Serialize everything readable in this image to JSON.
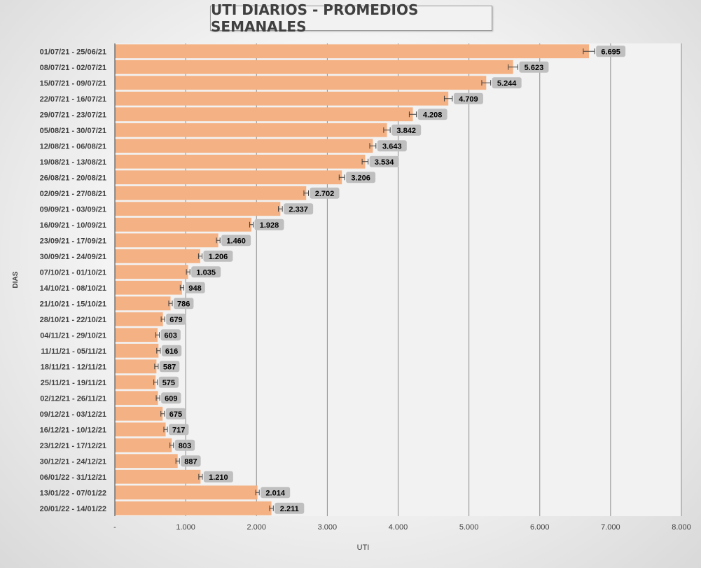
{
  "chart_data": {
    "type": "bar",
    "orientation": "horizontal",
    "title": "UTI DIARIOS - PROMEDIOS SEMANALES",
    "xlabel": "UTI",
    "ylabel": "DIAS",
    "xlim": [
      0,
      8000
    ],
    "x_ticks": [
      0,
      1000,
      2000,
      3000,
      4000,
      5000,
      6000,
      7000,
      8000
    ],
    "x_tick_labels": [
      "-",
      "1.000",
      "2.000",
      "3.000",
      "4.000",
      "5.000",
      "6.000",
      "7.000",
      "8.000"
    ],
    "grid": "vertical",
    "bar_color": "#F4B183",
    "label_bg_color": "#BFBFBF",
    "has_error_bars": true,
    "categories": [
      "01/07/21 - 25/06/21",
      "08/07/21 - 02/07/21",
      "15/07/21 - 09/07/21",
      "22/07/21 - 16/07/21",
      "29/07/21 - 23/07/21",
      "05/08/21 - 30/07/21",
      "12/08/21 - 06/08/21",
      "19/08/21 - 13/08/21",
      "26/08/21 - 20/08/21",
      "02/09/21 - 27/08/21",
      "09/09/21 - 03/09/21",
      "16/09/21 - 10/09/21",
      "23/09/21 - 17/09/21",
      "30/09/21 - 24/09/21",
      "07/10/21 - 01/10/21",
      "14/10/21 - 08/10/21",
      "21/10/21 - 15/10/21",
      "28/10/21 - 22/10/21",
      "04/11/21 - 29/10/21",
      "11/11/21 - 05/11/21",
      "18/11/21 - 12/11/21",
      "25/11/21 - 19/11/21",
      "02/12/21 - 26/11/21",
      "09/12/21 - 03/12/21",
      "16/12/21 - 10/12/21",
      "23/12/21 - 17/12/21",
      "30/12/21 - 24/12/21",
      "06/01/22 - 31/12/21",
      "13/01/22 - 07/01/22",
      "20/01/22 - 14/01/22"
    ],
    "values": [
      6695,
      5623,
      5244,
      4709,
      4208,
      3842,
      3643,
      3534,
      3206,
      2702,
      2337,
      1928,
      1460,
      1206,
      1035,
      948,
      786,
      679,
      603,
      616,
      587,
      575,
      609,
      675,
      717,
      803,
      887,
      1210,
      2014,
      2211
    ],
    "value_labels": [
      "6.695",
      "5.623",
      "5.244",
      "4.709",
      "4.208",
      "3.842",
      "3.643",
      "3.534",
      "3.206",
      "2.702",
      "2.337",
      "1.928",
      "1.460",
      "1.206",
      "1.035",
      "948",
      "786",
      "679",
      "603",
      "616",
      "587",
      "575",
      "609",
      "675",
      "717",
      "803",
      "887",
      "1.210",
      "2.014",
      "2.211"
    ]
  }
}
